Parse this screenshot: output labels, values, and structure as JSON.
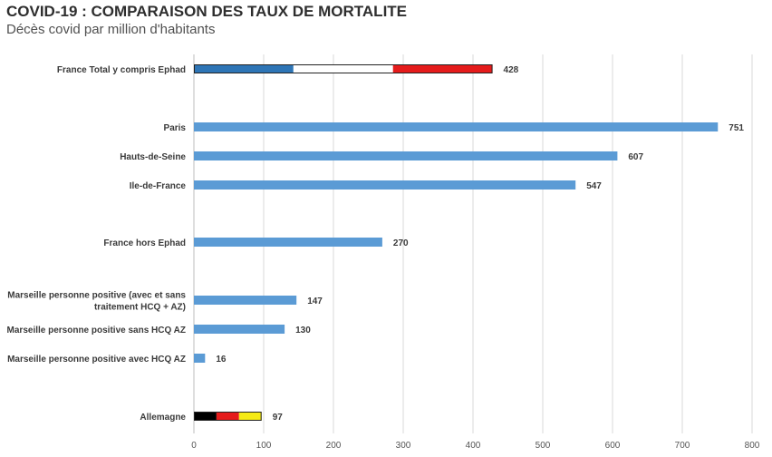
{
  "chart_data": {
    "type": "bar",
    "orientation": "horizontal",
    "title": "COVID-19 : COMPARAISON DES TAUX DE MORTALITE",
    "subtitle": "Décès covid par million d'habitants",
    "xlim": [
      0,
      800
    ],
    "xticks": [
      "0",
      "100",
      "200",
      "300",
      "400",
      "500",
      "600",
      "700",
      "800"
    ],
    "grid": "vertical",
    "legend": "none",
    "bar_color": "#5b9bd5",
    "categories": [
      {
        "label_lines": [
          "France Total y compris Ephad"
        ],
        "value": 428,
        "value_label": "428",
        "segments": [
          {
            "color": "#2e75b6",
            "share": 0.3333
          },
          {
            "color": "#ffffff",
            "share": 0.3334
          },
          {
            "color": "#e51b1b",
            "share": 0.3333
          }
        ]
      },
      {
        "label_lines": [
          "Paris"
        ],
        "value": 751,
        "value_label": "751"
      },
      {
        "label_lines": [
          "Hauts-de-Seine"
        ],
        "value": 607,
        "value_label": "607"
      },
      {
        "label_lines": [
          "Ile-de-France"
        ],
        "value": 547,
        "value_label": "547"
      },
      {
        "label_lines": [
          "France hors Ephad"
        ],
        "value": 270,
        "value_label": "270"
      },
      {
        "label_lines": [
          "Marseille personne positive (avec et sans",
          "traitement HCQ + AZ)"
        ],
        "value": 147,
        "value_label": "147"
      },
      {
        "label_lines": [
          "Marseille personne positive sans HCQ AZ"
        ],
        "value": 130,
        "value_label": "130"
      },
      {
        "label_lines": [
          "Marseille personne positive avec HCQ AZ"
        ],
        "value": 16,
        "value_label": "16"
      },
      {
        "label_lines": [
          "Allemagne"
        ],
        "value": 97,
        "value_label": "97",
        "segments": [
          {
            "color": "#000000",
            "share": 0.3333
          },
          {
            "color": "#e51b1b",
            "share": 0.3334
          },
          {
            "color": "#f5ea14",
            "share": 0.3333
          }
        ]
      }
    ]
  }
}
